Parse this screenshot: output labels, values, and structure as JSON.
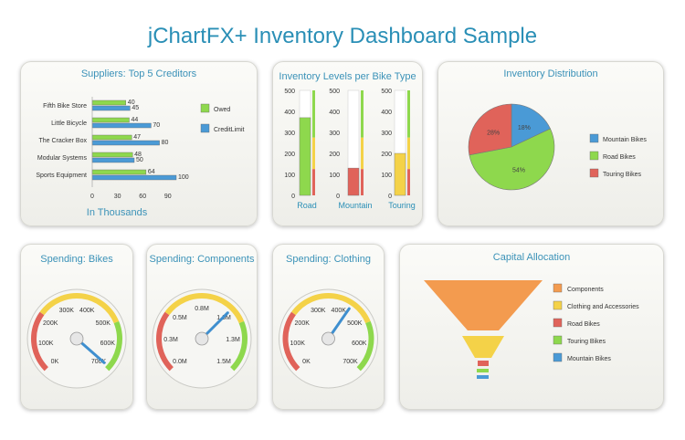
{
  "page": {
    "title": "jChartFX+ Inventory Dashboard Sample"
  },
  "colors": {
    "green": "#8ed84d",
    "blue": "#4a9ad6",
    "red": "#e0635a",
    "orange": "#f39b4f",
    "yellow": "#f4d248",
    "teal": "#2a8fb6"
  },
  "chart_data": [
    {
      "id": "suppliers",
      "type": "bar",
      "orientation": "horizontal",
      "title": "Suppliers: Top 5 Creditors",
      "xlabel": "In Thousands",
      "categories": [
        "Fifth Bike Store",
        "Little Bicycle",
        "The Cracker Box",
        "Modular Systems",
        "Sports Equipment"
      ],
      "series": [
        {
          "name": "Owed",
          "values": [
            40,
            44,
            47,
            48,
            64
          ],
          "color": "#8ed84d"
        },
        {
          "name": "CreditLimit",
          "values": [
            45,
            70,
            80,
            50,
            100
          ],
          "color": "#4a9ad6"
        }
      ],
      "xticks": [
        "0",
        "30",
        "60",
        "90"
      ],
      "xlim": [
        0,
        100
      ],
      "legend": "right"
    },
    {
      "id": "inventory_levels",
      "type": "bar",
      "title": "Inventory Levels per Bike Type",
      "categories": [
        "Road",
        "Mountain",
        "Touring"
      ],
      "values": [
        370,
        130,
        200
      ],
      "bar_colors": [
        "#8ed84d",
        "#e0635a",
        "#f4d248"
      ],
      "ylim": [
        0,
        500
      ],
      "yticks": [
        "0",
        "100",
        "200",
        "300",
        "400",
        "500"
      ]
    },
    {
      "id": "inventory_distribution",
      "type": "pie",
      "title": "Inventory Distribution",
      "slices": [
        {
          "name": "Mountain Bikes",
          "value": 18,
          "label": "18%",
          "color": "#4a9ad6"
        },
        {
          "name": "Road Bikes",
          "value": 54,
          "label": "54%",
          "color": "#8ed84d"
        },
        {
          "name": "Touring Bikes",
          "value": 28,
          "label": "28%",
          "color": "#e0635a"
        }
      ],
      "legend": "right"
    },
    {
      "id": "spending_bikes",
      "type": "gauge",
      "title": "Spending: Bikes",
      "ticks": [
        "0K",
        "100K",
        "200K",
        "300K",
        "400K",
        "500K",
        "600K",
        "700K"
      ],
      "max": 700,
      "value": 690
    },
    {
      "id": "spending_components",
      "type": "gauge",
      "title": "Spending: Components",
      "ticks": [
        "0.0M",
        "0.3M",
        "0.5M",
        "0.8M",
        "1.0M",
        "1.3M",
        "1.5M"
      ],
      "max": 1.5,
      "value": 1.0
    },
    {
      "id": "spending_clothing",
      "type": "gauge",
      "title": "Spending: Clothing",
      "ticks": [
        "0K",
        "100K",
        "200K",
        "300K",
        "400K",
        "500K",
        "600K",
        "700K"
      ],
      "max": 700,
      "value": 440
    },
    {
      "id": "capital_allocation",
      "type": "funnel",
      "title": "Capital Allocation",
      "categories": [
        "Components",
        "Clothing and Accessories",
        "Road Bikes",
        "Touring Bikes",
        "Mountain Bikes"
      ],
      "colors": [
        "#f39b4f",
        "#f4d248",
        "#e0635a",
        "#8ed84d",
        "#4a9ad6"
      ],
      "legend": "right"
    }
  ]
}
